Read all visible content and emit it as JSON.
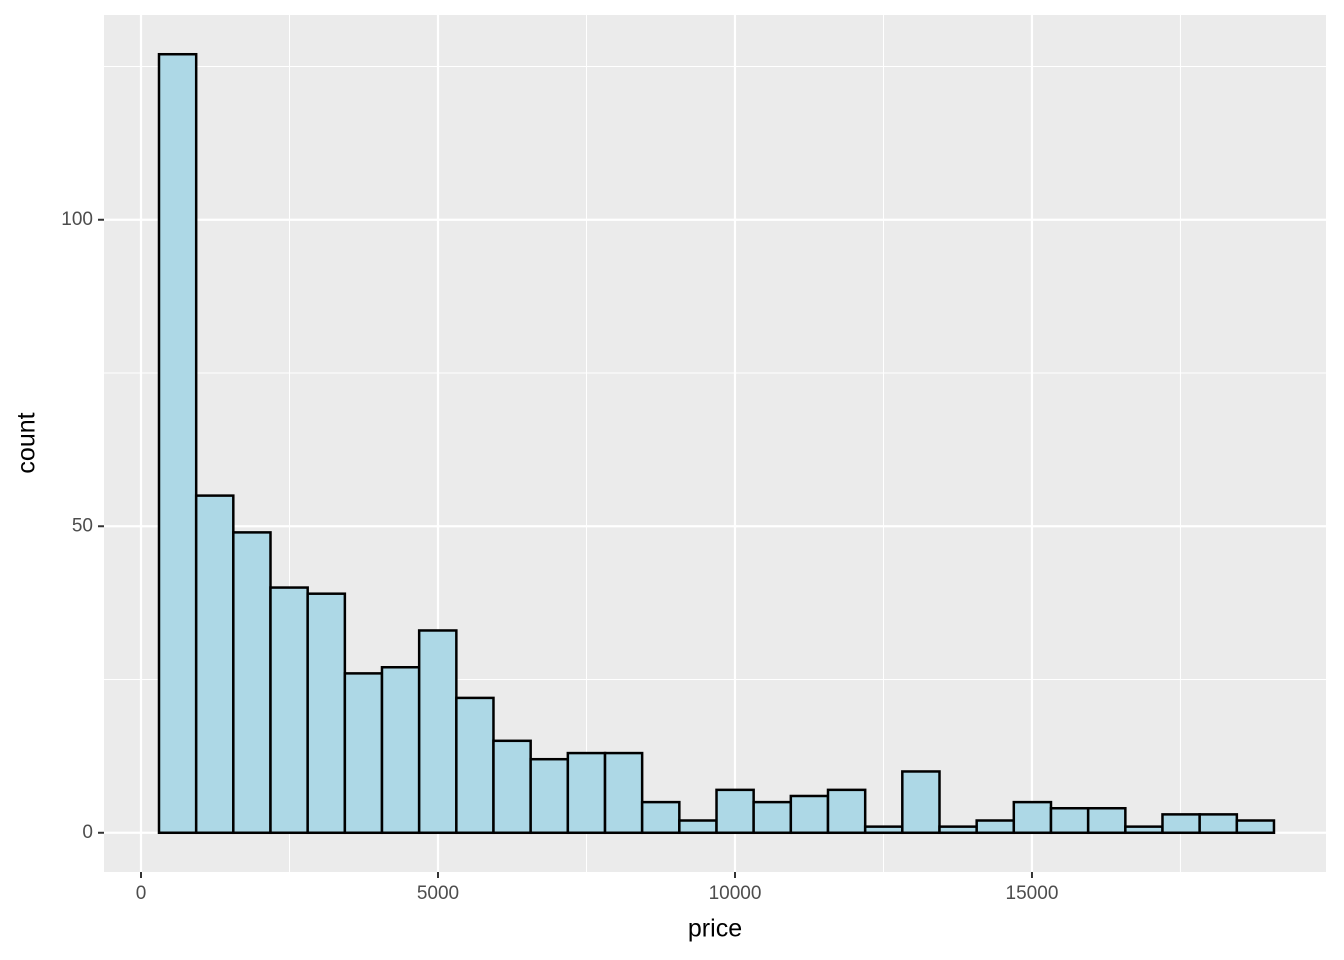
{
  "chart_data": {
    "type": "histogram",
    "x_label": "price",
    "y_label": "count",
    "bins": [
      303,
      929,
      1554,
      2180,
      2806,
      3432,
      4057,
      4683,
      5309,
      5934,
      6560,
      7186,
      7812,
      8437,
      9063,
      9689,
      10314,
      10940,
      11566,
      12192,
      12817,
      13443,
      14069,
      14694,
      15320,
      15946,
      16572,
      17197,
      17823,
      18449,
      19074
    ],
    "counts": [
      127,
      55,
      49,
      40,
      39,
      26,
      27,
      33,
      22,
      15,
      12,
      13,
      13,
      5,
      2,
      7,
      5,
      6,
      7,
      1,
      10,
      1,
      2,
      5,
      4,
      4,
      1,
      3,
      3,
      2
    ],
    "color": "#add8e6",
    "edge_color": "#000000",
    "background": "#ebebeb",
    "xlim": [
      -623,
      19950
    ],
    "xticks": [
      0,
      5000,
      10000,
      15000
    ],
    "x_minor_ticks": [
      2500,
      7500,
      12500,
      17500
    ],
    "ylim": [
      -6.4,
      133.4
    ],
    "yticks": [
      0,
      50,
      100
    ],
    "y_minor_ticks": [
      25,
      75,
      125
    ],
    "grid": true
  }
}
